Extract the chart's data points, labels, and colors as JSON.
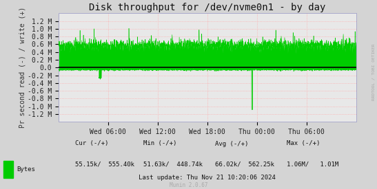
{
  "title": "Disk throughput for /dev/nvme0n1 - by day",
  "ylabel": "Pr second read (-) / write (+)",
  "background_color": "#d4d4d4",
  "plot_bg_color": "#e8e8e8",
  "grid_color": "#ffaaaa",
  "line_color": "#00cc00",
  "zero_line_color": "#000000",
  "ylim": [
    -1400000,
    1400000
  ],
  "yticks": [
    -1200000,
    -1000000,
    -800000,
    -600000,
    -400000,
    -200000,
    0.0,
    200000,
    400000,
    600000,
    800000,
    1000000,
    1200000
  ],
  "ytick_labels": [
    "-1.2 M",
    "-1.0 M",
    "-0.8 M",
    "-0.6 M",
    "-0.4 M",
    "-0.2 M",
    "0.0",
    "0.2 M",
    "0.4 M",
    "0.6 M",
    "0.8 M",
    "1.0 M",
    "1.2 M"
  ],
  "xtick_labels": [
    "Wed 06:00",
    "Wed 12:00",
    "Wed 18:00",
    "Thu 00:00",
    "Thu 06:00"
  ],
  "right_label": "RRDTOOL / TOBI OETIKER",
  "legend_label": "Bytes",
  "legend_color": "#00cc00",
  "stats_row1": "   Cur (-/+)               Min (-/+)          Avg (-/+)          Max (-/+)",
  "stats_row2": "55.15k/  555.40k    51.63k/  448.74k    66.02k/  562.25k    1.06M/   1.01M",
  "last_update": "Last update: Thu Nov 21 10:20:06 2024",
  "munin_version": "Munin 2.0.67",
  "title_fontsize": 10,
  "tick_fontsize": 7,
  "label_fontsize": 7,
  "stats_fontsize": 6.5
}
